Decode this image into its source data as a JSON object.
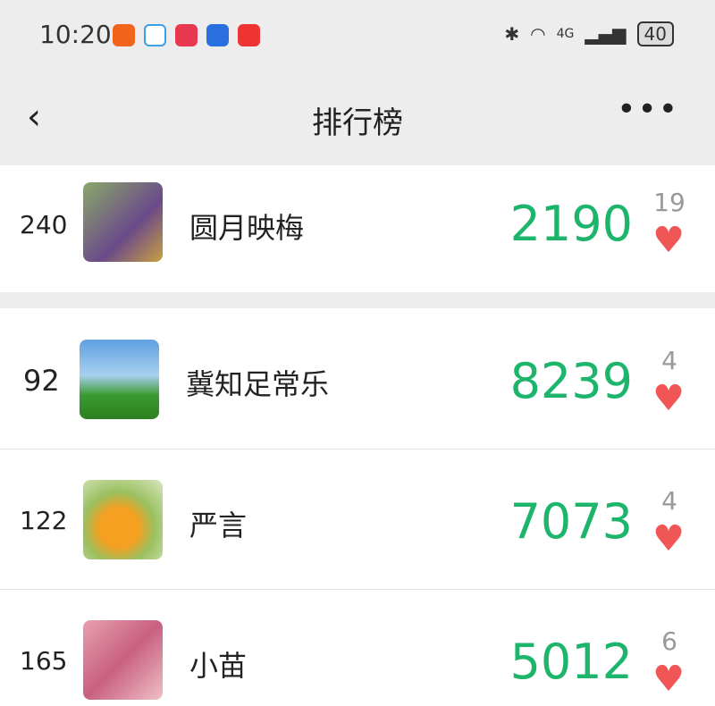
{
  "status": {
    "time": "10:20",
    "network": "4G",
    "battery": "40"
  },
  "header": {
    "title": "排行榜",
    "back_icon": "chevron-left-icon",
    "more_icon": "more-icon"
  },
  "colors": {
    "score": "#1db56b",
    "heart": "#f05656"
  },
  "me": {
    "rank": "240",
    "name": "圆月映梅",
    "score": "2190",
    "likes": "19"
  },
  "list": [
    {
      "rank": "92",
      "name": "冀知足常乐",
      "score": "8239",
      "likes": "4"
    },
    {
      "rank": "122",
      "name": "严言",
      "score": "7073",
      "likes": "4"
    },
    {
      "rank": "165",
      "name": "小苗",
      "score": "5012",
      "likes": "6"
    }
  ]
}
